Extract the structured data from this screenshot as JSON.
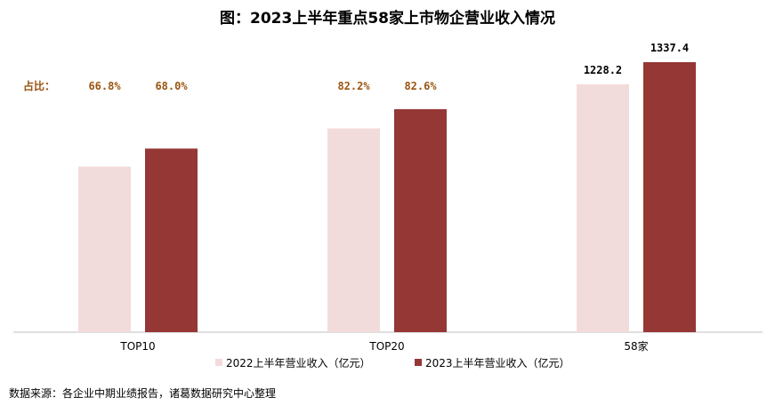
{
  "title": "图：2023上半年重点58家上市物企营业收入情况",
  "source": "数据来源：各企业中期业绩报告，诸葛数据研究中心整理",
  "ratio_label": "占比：",
  "colors": {
    "s2022": "#f2dcdb",
    "s2023": "#953735",
    "ratio": "#9c5410"
  },
  "chart_data": {
    "type": "bar",
    "title": "图：2023上半年重点58家上市物企营业收入情况",
    "categories": [
      "TOP10",
      "TOP20",
      "58家"
    ],
    "series": [
      {
        "name": "2022上半年营业收入（亿元）",
        "values": [
          820.4,
          1009.6,
          1228.2
        ]
      },
      {
        "name": "2023上半年营业收入（亿元）",
        "values": [
          909.4,
          1104.7,
          1337.4
        ]
      }
    ],
    "data_labels": [
      [
        "66.8%",
        "82.2%",
        "1228.2"
      ],
      [
        "68.0%",
        "82.6%",
        "1337.4"
      ]
    ],
    "ylim": [
      0,
      1337.4
    ],
    "grid": false,
    "legend_position": "bottom"
  }
}
